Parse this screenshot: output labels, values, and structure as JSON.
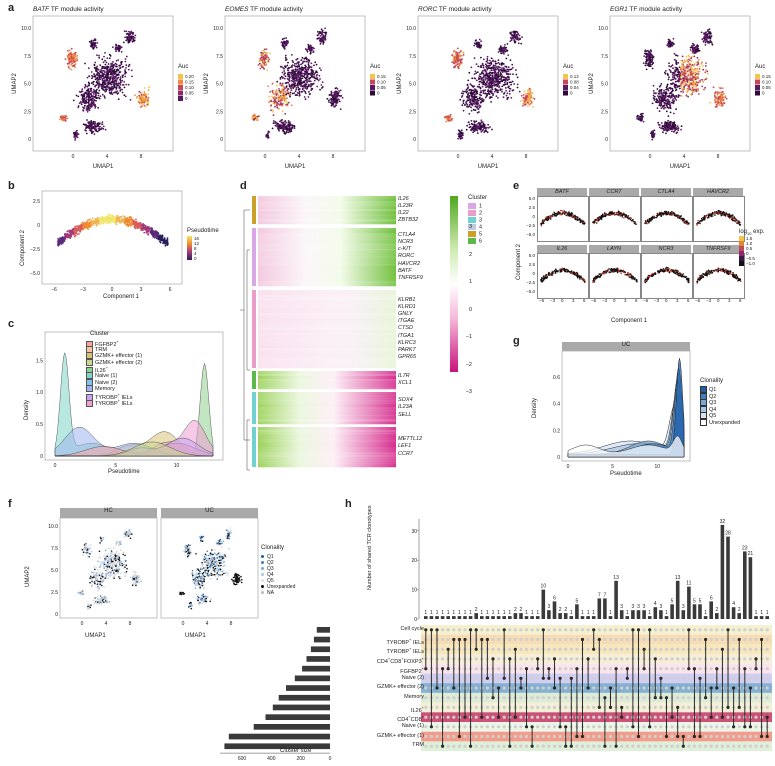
{
  "panel_labels": {
    "a": "a",
    "b": "b",
    "c": "c",
    "d": "d",
    "e": "e",
    "f": "f",
    "g": "g",
    "h": "h"
  },
  "panel_a": {
    "umaps": [
      {
        "gene": "BATF",
        "title_suffix": " TF module activity",
        "legend_title": "Auc",
        "legend_values": [
          "0.20",
          "0.15",
          "0.10",
          "0.05",
          "0"
        ],
        "hot": "right"
      },
      {
        "gene": "EOMES",
        "title_suffix": " TF module activity",
        "legend_title": "Auc",
        "legend_values": [
          "0.15",
          "0.10",
          "0.05",
          "0"
        ],
        "hot": "left"
      },
      {
        "gene": "RORC",
        "title_suffix": " TF module activity",
        "legend_title": "Auc",
        "legend_values": [
          "0.12",
          "0.08",
          "0.04",
          "0"
        ],
        "hot": "right"
      },
      {
        "gene": "EGR1",
        "title_suffix": " TF module activity",
        "legend_title": "Auc",
        "legend_values": [
          "0.15",
          "0.10",
          "0.05",
          "0"
        ],
        "hot": "mixed"
      }
    ],
    "xlabel": "UMAP1",
    "ylabel": "UMAP2",
    "xticks": [
      "0",
      "4",
      "8"
    ],
    "yticks": [
      "10.0",
      "7.5",
      "5.0",
      "2.5",
      "0"
    ]
  },
  "panel_b": {
    "xlabel": "Component 1",
    "ylabel": "Component 2",
    "xticks": [
      "−6",
      "−3",
      "0",
      "3",
      "6"
    ],
    "yticks": [
      "2.5",
      "0",
      "−2.5",
      "−5.0"
    ],
    "legend_title": "Pseudotime",
    "legend_values": [
      "16",
      "12",
      "8",
      "4",
      "0"
    ]
  },
  "panel_c": {
    "xlabel": "Pseudotime",
    "ylabel": "Density",
    "xticks": [
      "0",
      "5",
      "10"
    ],
    "yticks": [
      "1.5",
      "1.0",
      "0.5",
      "0"
    ],
    "legend_title": "Cluster",
    "legend": [
      {
        "label": "FGFBP2",
        "sup": "+",
        "color": "#f4a6a6"
      },
      {
        "label": "TRM",
        "sup": "",
        "color": "#f7c59f"
      },
      {
        "label": "GZMK+ effector (1)",
        "sup": "",
        "color": "#d9c27a"
      },
      {
        "label": "GZMK+ effector (2)",
        "sup": "",
        "color": "#c8d98a"
      },
      {
        "label": "IL26",
        "sup": "+",
        "color": "#8fd18f"
      },
      {
        "label": "Naive (1)",
        "sup": "",
        "color": "#7fd6c8"
      },
      {
        "label": "Naive (2)",
        "sup": "",
        "color": "#7fc3e8"
      },
      {
        "label": "Memory",
        "sup": "",
        "color": "#9fb4ec"
      },
      {
        "label": "TYROBP",
        "sup": "+",
        "suffix": " IELs",
        "color": "#c7a4ec"
      },
      {
        "label": "TYROBP",
        "sup": "+",
        "suffix": " IELs",
        "color": "#ef9fd3"
      }
    ]
  },
  "panel_d": {
    "legend_title": "Cluster",
    "legend": [
      {
        "label": "1",
        "color": "#d9a6e6"
      },
      {
        "label": "2",
        "color": "#e89ec6"
      },
      {
        "label": "3",
        "color": "#6fd1d1"
      },
      {
        "label": "4",
        "color": "#c0cbe3"
      },
      {
        "label": "5",
        "color": "#c9a227"
      },
      {
        "label": "6",
        "color": "#5cb84a"
      }
    ],
    "scale_values": [
      "3",
      "2",
      "1",
      "0",
      "−1",
      "−2",
      "−3"
    ],
    "gene_groups": [
      [
        "IL26",
        "IL23R",
        "IL22",
        "ZBTB32"
      ],
      [
        "CTLA4",
        "NCR3",
        "c-KIT",
        "RORC",
        "HAVCR2",
        "BATF",
        "TNFRSF9"
      ],
      [
        "KLRB1",
        "KLRD1",
        "GNLY",
        "ITGAE",
        "CTSD",
        "ITGA1",
        "KLRC3",
        "PARK7",
        "GPR65"
      ],
      [
        "IL7R",
        "XCL1"
      ],
      [
        "SOX4",
        "IL23A",
        "SELL"
      ],
      [
        "METTL12",
        "LEF1",
        "CCR7"
      ]
    ]
  },
  "panel_e": {
    "genes_row1": [
      "BATF",
      "CCR7",
      "CTLA4",
      "HAVCR2"
    ],
    "genes_row2": [
      "IL26",
      "LAYN",
      "NCR3",
      "TNFRSF9"
    ],
    "xlabel": "Component 1",
    "ylabel": "Component 2",
    "xticks": [
      "−6",
      "−3",
      "0",
      "3",
      "6"
    ],
    "yticks": [
      "5.0",
      "2.5",
      "0",
      "−2.5",
      "−5.0"
    ],
    "legend_title": "log",
    "legend_sub": "10",
    "legend_suffix": " exp.",
    "legend_values": [
      "1.5",
      "1.0",
      "0.5",
      "0",
      "−0.5",
      "−1.0"
    ]
  },
  "panel_g": {
    "strip": "UC",
    "xlabel": "Pseudotime",
    "ylabel": "Density",
    "xticks": [
      "0",
      "5",
      "10"
    ],
    "yticks": [
      "0.6",
      "0.4",
      "0.2",
      "0"
    ],
    "legend_title": "Clonality",
    "legend": [
      {
        "label": "Q1",
        "color": "#1f5fa8"
      },
      {
        "label": "Q2",
        "color": "#3f80c0"
      },
      {
        "label": "Q3",
        "color": "#7aa7d6"
      },
      {
        "label": "Q4",
        "color": "#a9c6e6"
      },
      {
        "label": "Q5",
        "color": "#d5e3f3"
      },
      {
        "label": "Unexpanded",
        "color": "#ffffff"
      }
    ]
  },
  "panel_f": {
    "strips": [
      "HC",
      "UC"
    ],
    "xlabel": "UMAP1",
    "ylabel": "UMAP2",
    "xticks": [
      "0",
      "4",
      "8"
    ],
    "yticks": [
      "10.0",
      "7.5",
      "5.0",
      "2.5",
      "0"
    ],
    "legend_title": "Clonality",
    "legend": [
      {
        "label": "Q1",
        "color": "#1f5fa8"
      },
      {
        "label": "Q2",
        "color": "#3f80c0"
      },
      {
        "label": "Q3",
        "color": "#7aa7d6"
      },
      {
        "label": "Q4",
        "color": "#a9c6e6"
      },
      {
        "label": "Q5",
        "color": "#d5e3f3"
      },
      {
        "label": "Unexpanded",
        "color": "#111111"
      },
      {
        "label": "NA",
        "color": "#bbbbbb"
      }
    ]
  },
  "panel_h": {
    "ylabel": "Number of shared TCR clonotypes",
    "yticks": [
      "30",
      "20",
      "10",
      "0"
    ],
    "size_xlabel": "Cluster size",
    "size_xticks": [
      "600",
      "400",
      "200",
      "0"
    ],
    "set_rows": [
      {
        "label": "Cell cycle",
        "size": 90,
        "color": "#f3efc8"
      },
      {
        "label": "TYROBP",
        "sup": "+",
        "suffix": " IELs",
        "size": 110,
        "color": "#f5d7a8"
      },
      {
        "label": "TYROBP",
        "sup": "+",
        "suffix": " IELs",
        "size": 130,
        "color": "#f6e3b2"
      },
      {
        "label": "CD4",
        "sup": "+",
        "suffix": "CD8",
        "sup2": "+",
        "suffix2": "FOXP3",
        "sup3": "+",
        "size": 160,
        "color": "#f6ebd0"
      },
      {
        "label": "FGFBP2",
        "sup": "+",
        "size": 190,
        "color": "#f8e0e8"
      },
      {
        "label": "Naive (2)",
        "size": 240,
        "color": "#c9c6ee"
      },
      {
        "label": "GZMK+ effector (2)",
        "size": 300,
        "color": "#6fa2c9"
      },
      {
        "label": "Memory",
        "size": 350,
        "color": "#d8e8cf"
      },
      {
        "label": "IL26",
        "sup": "+",
        "size": 390,
        "color": "#f2ecd0"
      },
      {
        "label": "CD4",
        "sup": "+",
        "suffix": "CD8",
        "sup2": "+",
        "size": 440,
        "color": "#c2325e"
      },
      {
        "label": "Naive (1)",
        "size": 520,
        "color": "#eaf3e4"
      },
      {
        "label": "GZMK+ effector (1)",
        "size": 690,
        "color": "#f08b78"
      },
      {
        "label": "TRM",
        "size": 720,
        "color": "#d9ecd3"
      }
    ],
    "bars": [
      1,
      1,
      1,
      1,
      1,
      1,
      1,
      1,
      1,
      2,
      1,
      1,
      1,
      1,
      1,
      1,
      2,
      2,
      1,
      1,
      1,
      10,
      3,
      6,
      2,
      2,
      1,
      5,
      1,
      1,
      1,
      7,
      7,
      1,
      13,
      3,
      1,
      3,
      3,
      3,
      1,
      4,
      3,
      1,
      5,
      13,
      3,
      11,
      5,
      5,
      1,
      6,
      2,
      32,
      28,
      4,
      2,
      23,
      21,
      1,
      1,
      1
    ],
    "bar_labels": [
      "1",
      "1",
      "1",
      "1",
      "1",
      "1",
      "1",
      "1",
      "1",
      "2",
      "1",
      "1",
      "1",
      "1",
      "1",
      "1",
      "2",
      "2",
      "1",
      "1",
      "1",
      "10",
      "3",
      "6",
      "2",
      "2",
      "1",
      "5",
      "1",
      "1",
      "1",
      "7",
      "7",
      "1",
      "13",
      "3",
      "1",
      "3",
      "3",
      "3",
      "1",
      "4",
      "3",
      "1",
      "5",
      "13",
      "3",
      "11",
      "5",
      "5",
      "1",
      "6",
      "2",
      "32",
      "28",
      "4",
      "2",
      "23",
      "21",
      "1",
      "1",
      "1"
    ]
  }
}
